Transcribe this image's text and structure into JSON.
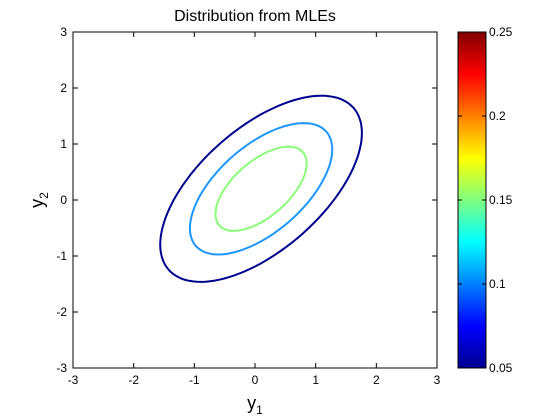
{
  "chart_data": {
    "type": "contour",
    "title": "Distribution from MLEs",
    "xlabel": {
      "base": "y",
      "sub": "1"
    },
    "ylabel": {
      "base": "y",
      "sub": "2"
    },
    "xlim": [
      -3,
      3
    ],
    "ylim": [
      -3,
      3
    ],
    "xticks": [
      "-3",
      "-2",
      "-1",
      "0",
      "1",
      "2",
      "3"
    ],
    "yticks": [
      "-3",
      "-2",
      "-1",
      "0",
      "1",
      "2",
      "3"
    ],
    "grid": false,
    "distribution": {
      "mean": [
        0.1,
        0.2
      ],
      "cov": [
        [
          1.0,
          0.6
        ],
        [
          0.6,
          1.0
        ]
      ]
    },
    "levels": [
      {
        "value": 0.05,
        "color": "#00008f"
      },
      {
        "value": 0.1,
        "color": "#1e96ff"
      },
      {
        "value": 0.15,
        "color": "#8aff7a"
      },
      {
        "value": 0.2,
        "color": "#ff7a00"
      },
      {
        "value": 0.25,
        "color": "#7a0000"
      }
    ],
    "colorbar": {
      "range": [
        0.05,
        0.25
      ],
      "ticks": [
        "0.05",
        "0.1",
        "0.15",
        "0.2",
        "0.25"
      ],
      "colormap": "jet"
    }
  }
}
